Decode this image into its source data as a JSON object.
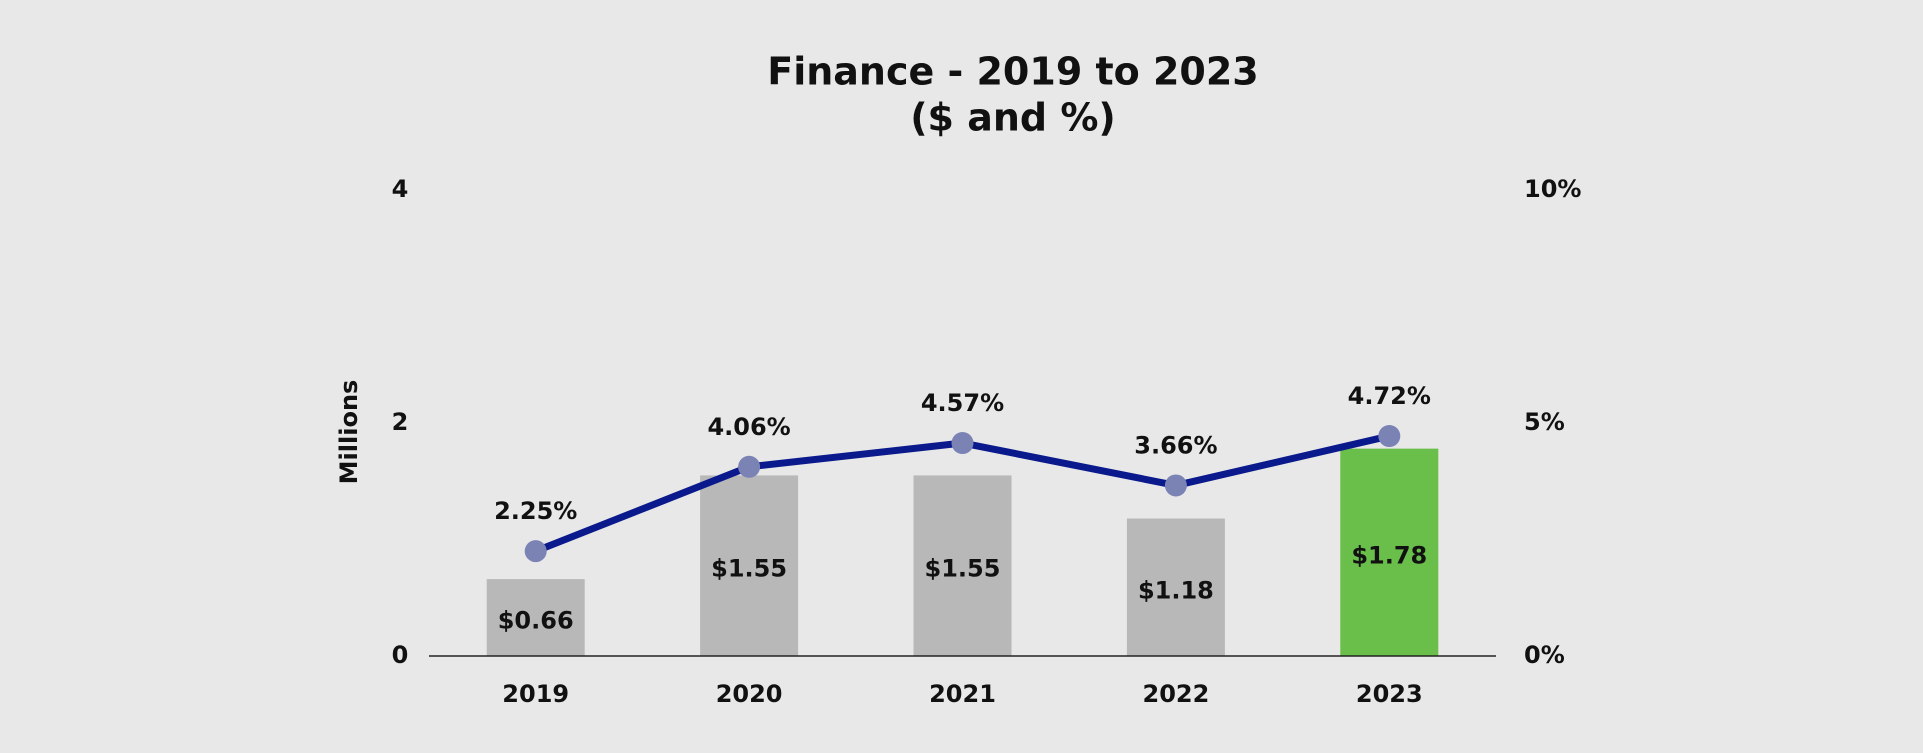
{
  "chart_data": {
    "type": "combo",
    "title": "Finance - 2019 to 2023",
    "subtitle": "($ and %)",
    "y_label": "Millions",
    "categories": [
      "2019",
      "2020",
      "2021",
      "2022",
      "2023"
    ],
    "ylim": [
      0,
      4
    ],
    "yticks": [
      0,
      2,
      4
    ],
    "y2lim": [
      0,
      10
    ],
    "y2ticks": [
      {
        "value": 0,
        "label": "0%"
      },
      {
        "value": 5,
        "label": "5%"
      },
      {
        "value": 10,
        "label": "10%"
      }
    ],
    "grid": false,
    "series": [
      {
        "type": "bar",
        "values": [
          0.66,
          1.55,
          1.55,
          1.18,
          1.78
        ],
        "value_labels": [
          "$0.66",
          "$1.55",
          "$1.55",
          "$1.18",
          "$1.78"
        ],
        "colors": [
          "#b8b8b8",
          "#b8b8b8",
          "#b8b8b8",
          "#b8b8b8",
          "#6abf4b"
        ]
      },
      {
        "type": "line",
        "axis": "y2",
        "color": "#0a1a8c",
        "marker_color": "#7b83b5",
        "values": [
          2.25,
          4.06,
          4.57,
          3.66,
          4.72
        ],
        "value_labels": [
          "2.25%",
          "4.06%",
          "4.57%",
          "3.66%",
          "4.72%"
        ]
      }
    ]
  }
}
